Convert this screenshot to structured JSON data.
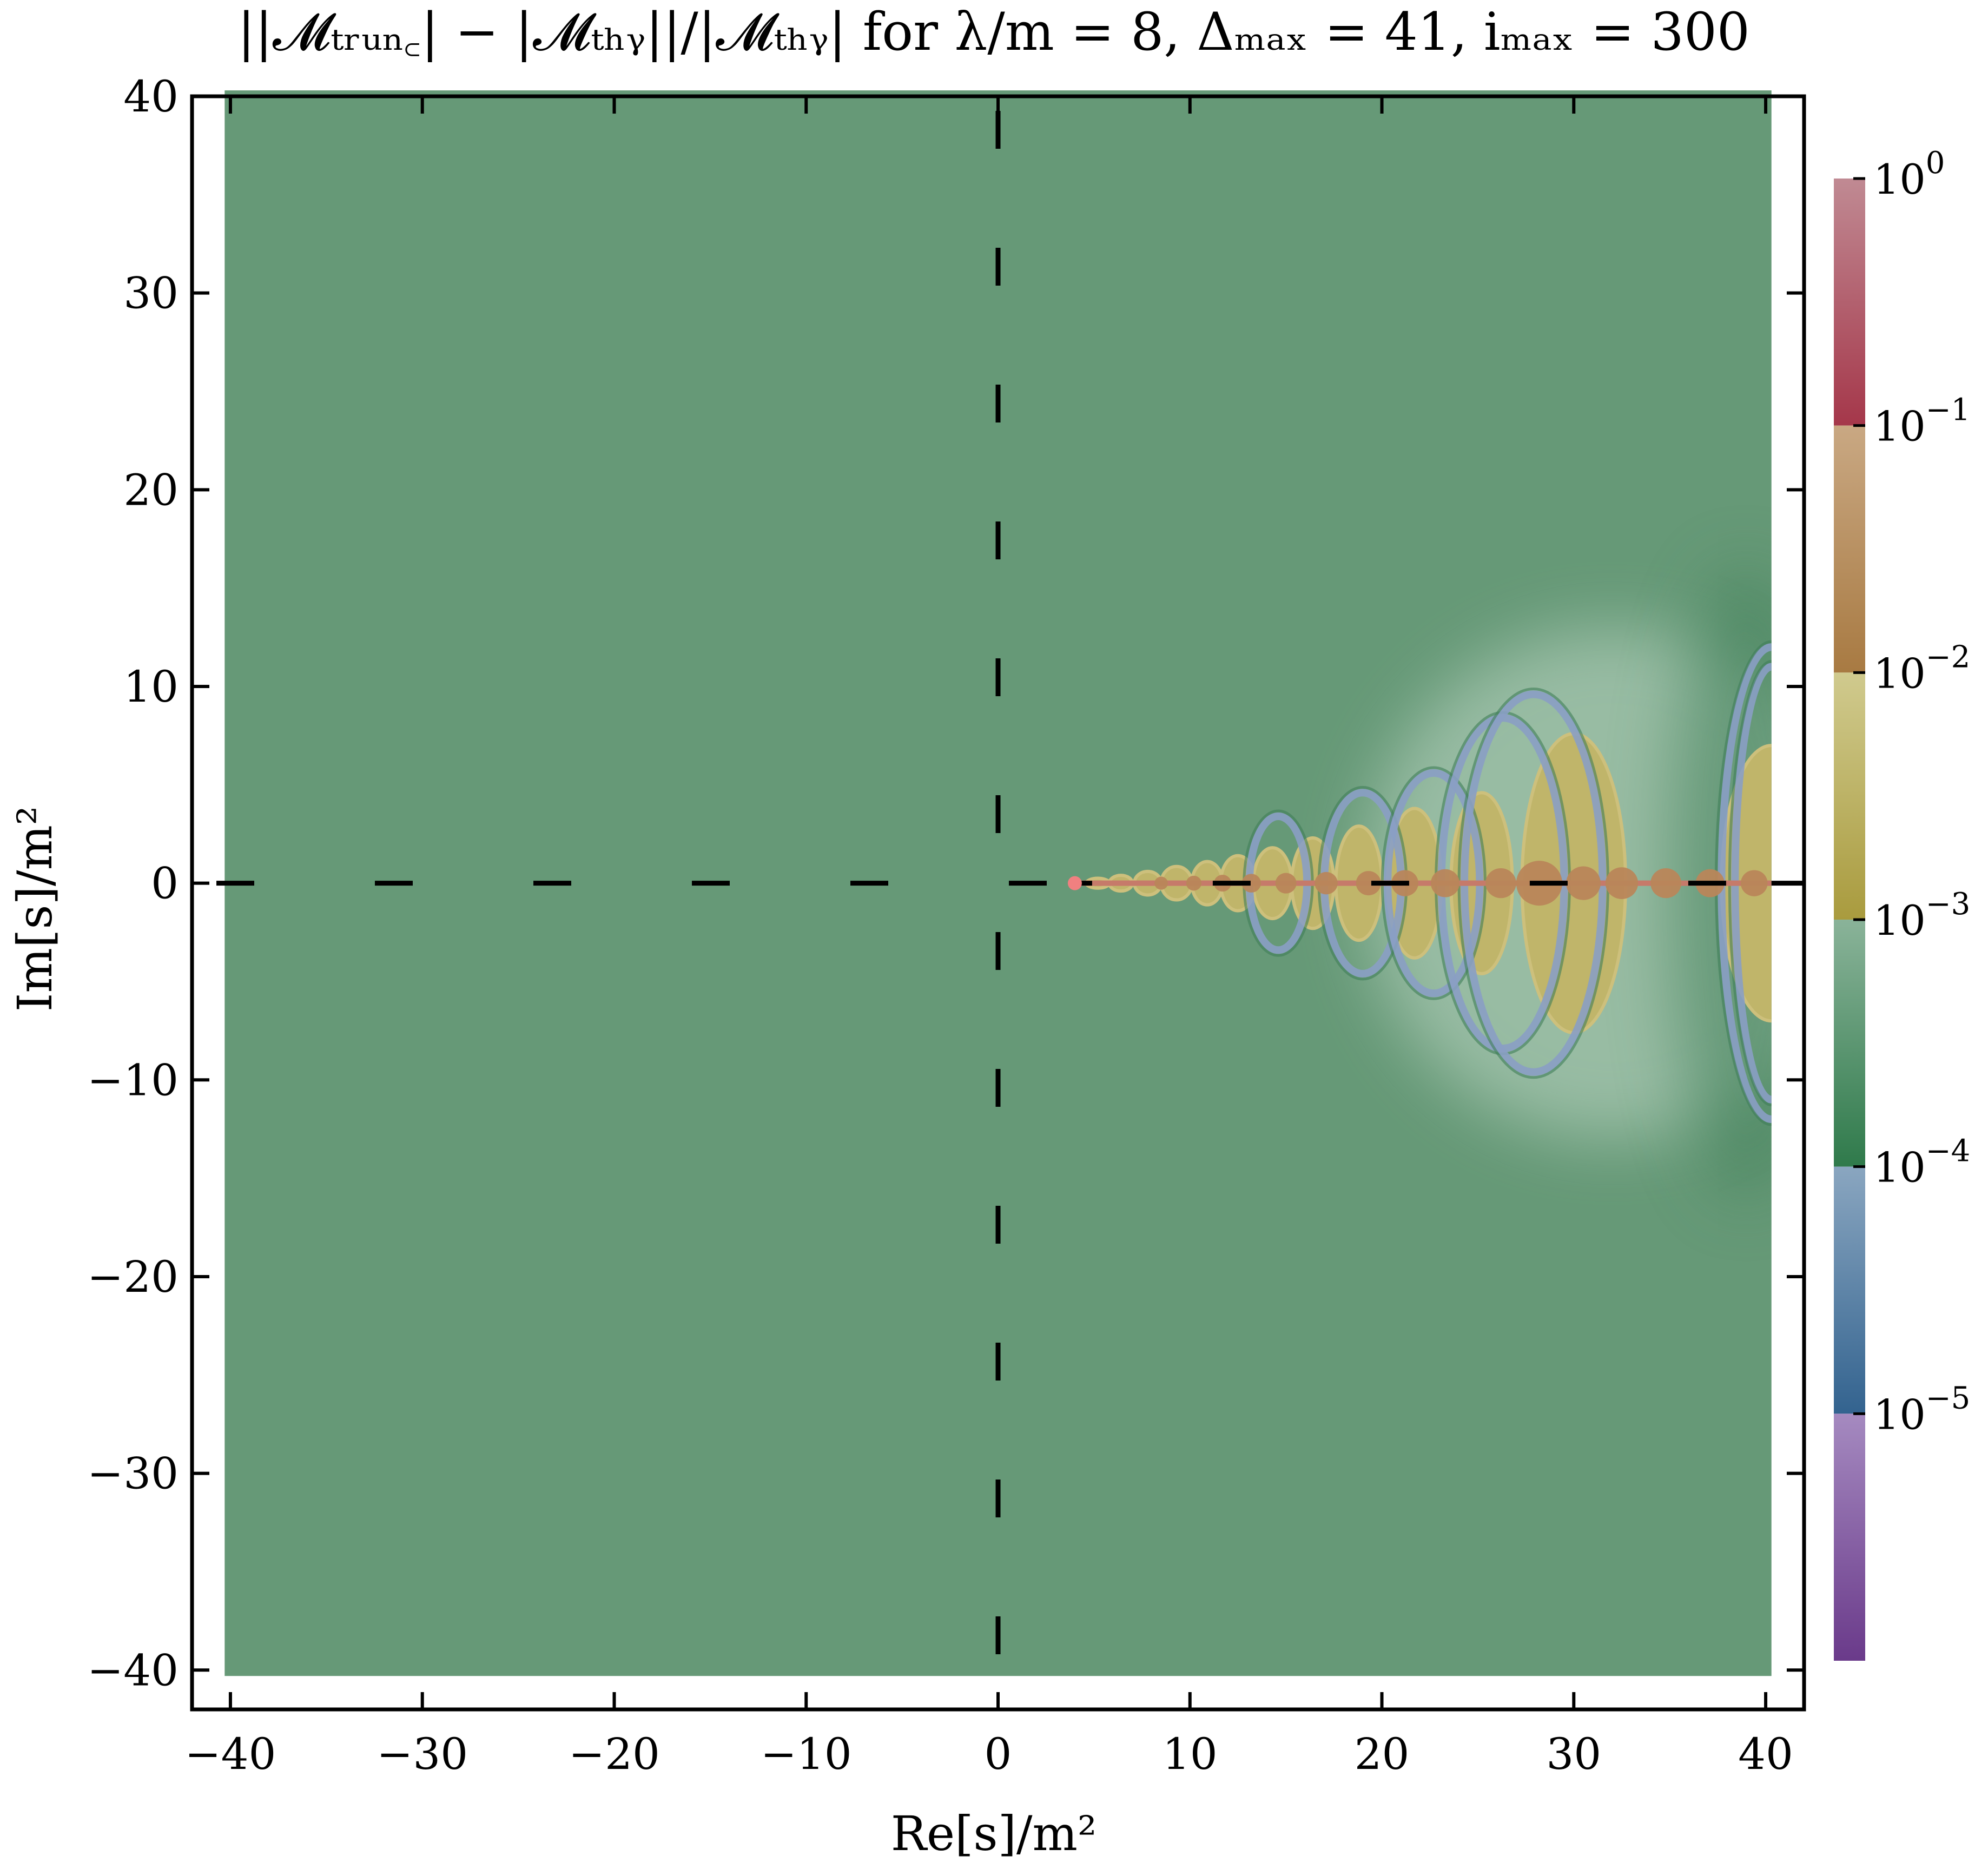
{
  "chart_data": {
    "type": "heatmap",
    "title": "||𝓜ₜᵣᵤₙ꜀| − |𝓜ₜₕᵧ||/|𝓜ₜₕᵧ| for λ/m = 8, Δₘₐₓ = 41, iₘₐₓ = 300",
    "xlabel": "Re[s]/m²",
    "ylabel": "Im[s]/m²",
    "xlim": [
      -42,
      42
    ],
    "ylim": [
      -42,
      40
    ],
    "x_ticks": [
      -40,
      -30,
      -20,
      -10,
      0,
      10,
      20,
      30,
      40
    ],
    "x_tick_labels": [
      "−40",
      "−30",
      "−20",
      "−10",
      "0",
      "10",
      "20",
      "30",
      "40"
    ],
    "y_ticks": [
      40,
      30,
      20,
      10,
      0,
      -10,
      -20,
      -30,
      -40
    ],
    "y_tick_labels": [
      "40",
      "30",
      "20",
      "10",
      "0",
      "−10",
      "−20",
      "−30",
      "−40"
    ],
    "data_extent": {
      "x": [
        -40.3,
        40.3
      ],
      "y": [
        -40.3,
        40.3
      ]
    },
    "background_value": 0.0004,
    "threshold_point": {
      "x": 4,
      "y": 0,
      "color": "#f08080"
    },
    "dashed_axes": {
      "real_axis_y": 0,
      "imag_axis_x": 0,
      "color": "#000000"
    },
    "lobes": [
      {
        "x": 5.2,
        "hx": 0.6,
        "hy": 0.25,
        "level": "yellow"
      },
      {
        "x": 6.4,
        "hx": 0.6,
        "hy": 0.4,
        "level": "yellow"
      },
      {
        "x": 7.8,
        "hx": 0.7,
        "hy": 0.6,
        "level": "yellow"
      },
      {
        "x": 9.3,
        "hx": 0.8,
        "hy": 0.85,
        "level": "yellow"
      },
      {
        "x": 10.9,
        "hx": 0.8,
        "hy": 1.1,
        "level": "yellow"
      },
      {
        "x": 12.5,
        "hx": 0.9,
        "hy": 1.4,
        "level": "yellow"
      },
      {
        "x": 14.3,
        "hx": 1.0,
        "hy": 1.8,
        "level": "yellow"
      },
      {
        "x": 16.4,
        "hx": 1.1,
        "hy": 2.3,
        "level": "yellow"
      },
      {
        "x": 18.8,
        "hx": 1.2,
        "hy": 2.9,
        "level": "yellow"
      },
      {
        "x": 21.7,
        "hx": 1.4,
        "hy": 3.8,
        "level": "yellow"
      },
      {
        "x": 25.2,
        "hx": 1.6,
        "hy": 4.6,
        "level": "yellow"
      },
      {
        "x": 30.0,
        "hx": 2.7,
        "hy": 7.6,
        "level": "yellow"
      },
      {
        "x": 40.3,
        "hx": 2.6,
        "hy": 7.0,
        "level": "yellow"
      }
    ],
    "rings": [
      {
        "x": 14.6,
        "hx": 1.5,
        "hy": 3.4
      },
      {
        "x": 19.0,
        "hx": 2.0,
        "hy": 4.6
      },
      {
        "x": 22.7,
        "hx": 2.4,
        "hy": 5.6
      },
      {
        "x": 26.3,
        "hx": 3.2,
        "hy": 8.4
      },
      {
        "x": 27.9,
        "hx": 3.6,
        "hy": 9.6
      },
      {
        "x": 40.3,
        "hx": 1.9,
        "hy": 11.0
      },
      {
        "x": 40.3,
        "hx": 2.6,
        "hy": 12.0
      }
    ],
    "blobs": [
      {
        "x": 8.5,
        "r": 0.35
      },
      {
        "x": 10.2,
        "r": 0.4
      },
      {
        "x": 11.7,
        "r": 0.45
      },
      {
        "x": 13.2,
        "r": 0.5
      },
      {
        "x": 15.0,
        "r": 0.55
      },
      {
        "x": 17.1,
        "r": 0.6
      },
      {
        "x": 19.3,
        "r": 0.65
      },
      {
        "x": 21.2,
        "r": 0.7
      },
      {
        "x": 23.3,
        "r": 0.75
      },
      {
        "x": 26.2,
        "r": 0.8
      },
      {
        "x": 28.2,
        "r": 1.2
      },
      {
        "x": 30.5,
        "r": 0.9
      },
      {
        "x": 32.5,
        "r": 0.85
      },
      {
        "x": 34.8,
        "r": 0.8
      },
      {
        "x": 37.1,
        "r": 0.75
      },
      {
        "x": 39.4,
        "r": 0.7
      }
    ],
    "colorbar": {
      "min": 1e-06,
      "max": 1,
      "scale": "log",
      "ticks": [
        {
          "exp": "0",
          "value": 1
        },
        {
          "exp": "−1",
          "value": 0.1
        },
        {
          "exp": "−2",
          "value": 0.01
        },
        {
          "exp": "−3",
          "value": 0.001
        },
        {
          "exp": "−4",
          "value": 0.0001
        },
        {
          "exp": "−5",
          "value": 1e-05
        }
      ],
      "tick_base": "10",
      "segments": [
        {
          "from": 1,
          "to": 0.1,
          "top": "#c08a93",
          "bottom": "#a5374a"
        },
        {
          "from": 0.1,
          "to": 0.01,
          "top": "#c9a883",
          "bottom": "#a87a42"
        },
        {
          "from": 0.01,
          "to": 0.001,
          "top": "#d0ca8e",
          "bottom": "#a99b3e"
        },
        {
          "from": 0.001,
          "to": 0.0001,
          "top": "#8ab399",
          "bottom": "#2f7a4b"
        },
        {
          "from": 0.0001,
          "to": 1e-05,
          "top": "#8aa6c0",
          "bottom": "#33638f"
        },
        {
          "from": 1e-05,
          "to": 1e-06,
          "top": "#a58ac0",
          "bottom": "#6a3a8a"
        }
      ]
    },
    "colors": {
      "background_green": "#669977",
      "lobe_yellow": "#c0b56a",
      "lobe_yellow_light": "#cdc07c",
      "ring_blue": "#8a9fc4",
      "blob_orange": "#b9865a",
      "cut_line": "#c67a6a",
      "halo": "#a9c8b2",
      "dark_edge": "#3f7f58"
    },
    "grid": false
  }
}
